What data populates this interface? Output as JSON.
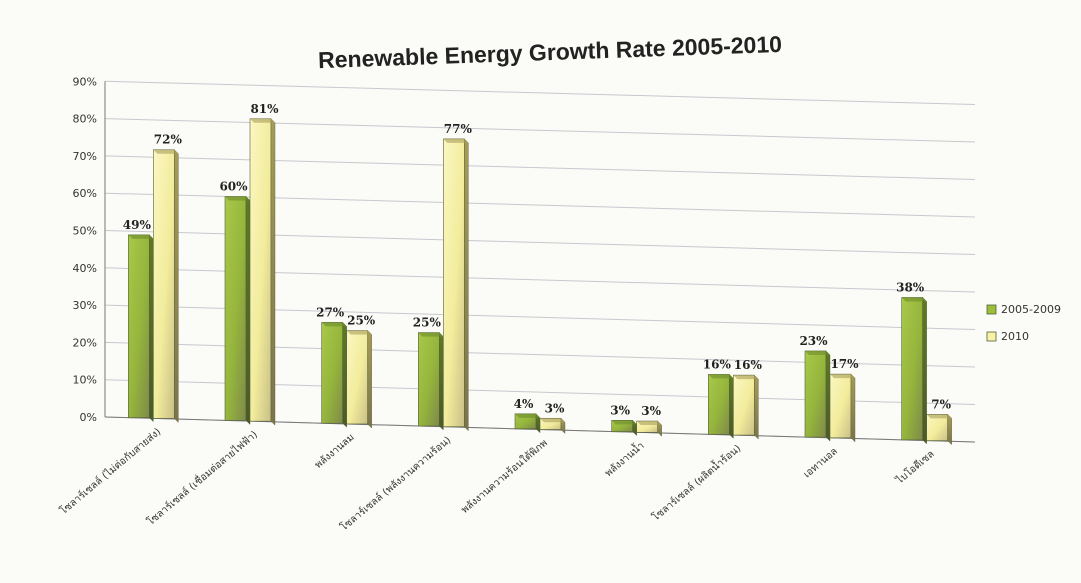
{
  "chart_data": {
    "type": "bar",
    "title": "Renewable Energy Growth Rate 2005-2010",
    "xlabel": "",
    "ylabel": "",
    "ylim": [
      0,
      90
    ],
    "yticks": [
      "0%",
      "10%",
      "20%",
      "30%",
      "40%",
      "50%",
      "60%",
      "70%",
      "80%",
      "90%"
    ],
    "categories": [
      "โซลาร์เซลล์ (ไม่ต่อกับสายส่ง)",
      "โซลาร์เซลล์ (เชื่อมต่อสายไฟฟ้า)",
      "พลังงานลม",
      "โซลาร์เซลล์ (พลังงานความร้อน)",
      "พลังงานความร้อนใต้พิภพ",
      "พลังงานน้ำ",
      "โซลาร์เซลล์ (ผลิตน้ำร้อน)",
      "เอทานอล",
      "ไบโอดีเซล"
    ],
    "series": [
      {
        "name": "2005-2009",
        "color": "#9cbf3b",
        "values": [
          49,
          60,
          27,
          25,
          4,
          3,
          16,
          23,
          38
        ],
        "labels": [
          "49%",
          "60%",
          "27%",
          "25%",
          "4%",
          "3%",
          "16%",
          "23%",
          "38%"
        ]
      },
      {
        "name": "2010",
        "color": "#f6f2a6",
        "values": [
          72,
          81,
          25,
          77,
          3,
          3,
          16,
          17,
          7
        ],
        "labels": [
          "72%",
          "81%",
          "25%",
          "77%",
          "3%",
          "3%",
          "16%",
          "17%",
          "7%"
        ]
      }
    ],
    "grid": true,
    "legend_position": "right"
  }
}
